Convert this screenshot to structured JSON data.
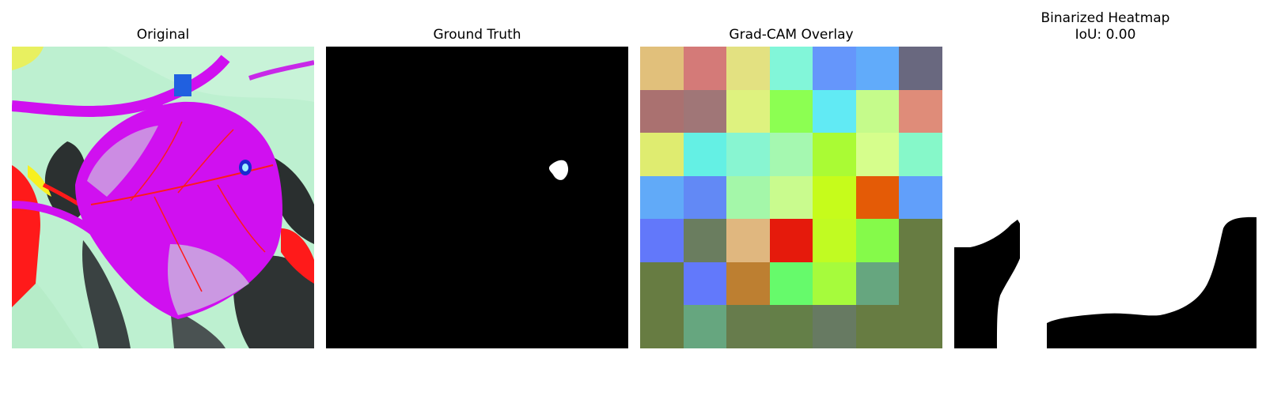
{
  "panels": {
    "original": {
      "title": "Original"
    },
    "ground_truth": {
      "title": "Ground Truth"
    },
    "gradcam": {
      "title": "Grad-CAM Overlay",
      "grid_rows": 7,
      "grid_cols": 7,
      "cells": [
        [
          "#e1c07b",
          "#d47a78",
          "#e3e181",
          "#82f6d9",
          "#6596fb",
          "#61abfa",
          "#69687f"
        ],
        [
          "#aa7170",
          "#a07677",
          "#def27f",
          "#8cff52",
          "#61eaf4",
          "#c5fb8b",
          "#df8c79"
        ],
        [
          "#dfec70",
          "#64f0e4",
          "#88f5d1",
          "#a5f8b0",
          "#aafb34",
          "#d6fe8c",
          "#86f8c9"
        ],
        [
          "#61aaf8",
          "#6289f5",
          "#a4f7a9",
          "#c9fb8e",
          "#c6fc1b",
          "#e45b06",
          "#619ffa"
        ],
        [
          "#6278fa",
          "#6a7d5f",
          "#e0b77f",
          "#e51a0c",
          "#c1fb22",
          "#85fa4a",
          "#677c42"
        ],
        [
          "#677c42",
          "#6279fb",
          "#bd7f31",
          "#66fa6b",
          "#a6fb3c",
          "#66a67f",
          "#677c42"
        ],
        [
          "#677c42",
          "#66a67f",
          "#677c4c",
          "#647f48",
          "#677a62",
          "#677c42",
          "#677c42"
        ]
      ]
    },
    "binarized": {
      "title": "Binarized Heatmap\nIoU: 0.00"
    }
  },
  "colors": {
    "background": "#ffffff",
    "mask_fg": "#ffffff",
    "mask_bg": "#000000",
    "leaf_magenta": "#d010f0",
    "leaf_bg": "#bdf0d0",
    "stem_red": "#ff1a1a",
    "shadow_dark": "#2b3030"
  }
}
